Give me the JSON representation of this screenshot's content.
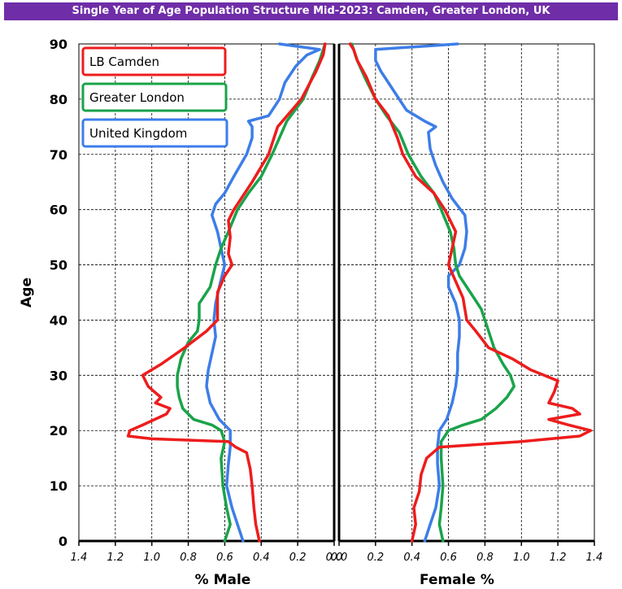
{
  "chart_data": {
    "type": "line",
    "title": "Single Year of Age Population Structure Mid-2023: Camden, Greater London, UK",
    "ylabel": "Age",
    "xlabel_left": "% Male",
    "xlabel_right": "Female %",
    "ylim": [
      0,
      90
    ],
    "xlim_each_side": [
      0,
      1.4
    ],
    "y_ticks": [
      0,
      10,
      20,
      30,
      40,
      50,
      60,
      70,
      80,
      90
    ],
    "y_tick_labels": [
      "0",
      "10",
      "20",
      "30",
      "40",
      "50",
      "60",
      "70",
      "80",
      "90"
    ],
    "x_tick_labels_male": [
      "1.4",
      "1.2",
      "1.0",
      "0.8",
      "0.6",
      "0.4",
      "0.2",
      "0.0"
    ],
    "x_tick_labels_female": [
      "0.0",
      "0.2",
      "0.4",
      "0.6",
      "0.8",
      "1.0",
      "1.2",
      "1.4"
    ],
    "grid": true,
    "legend_position": "top-left",
    "colors": {
      "LB Camden": "#ee1c1c",
      "Greater London": "#1aa34a",
      "United Kingdom": "#3d7de8"
    },
    "series": [
      {
        "name": "LB Camden",
        "male": [
          [
            0,
            0.41
          ],
          [
            3,
            0.43
          ],
          [
            6,
            0.44
          ],
          [
            10,
            0.45
          ],
          [
            13,
            0.46
          ],
          [
            16,
            0.48
          ],
          [
            17,
            0.54
          ],
          [
            18,
            0.58
          ],
          [
            18.5,
            1.0
          ],
          [
            19,
            1.13
          ],
          [
            20,
            1.12
          ],
          [
            21,
            1.05
          ],
          [
            23,
            0.92
          ],
          [
            24,
            0.9
          ],
          [
            25,
            0.98
          ],
          [
            26,
            0.95
          ],
          [
            28,
            1.02
          ],
          [
            30,
            1.05
          ],
          [
            32,
            0.95
          ],
          [
            35,
            0.82
          ],
          [
            38,
            0.7
          ],
          [
            40,
            0.64
          ],
          [
            45,
            0.64
          ],
          [
            48,
            0.6
          ],
          [
            50,
            0.56
          ],
          [
            52,
            0.58
          ],
          [
            55,
            0.57
          ],
          [
            58,
            0.58
          ],
          [
            60,
            0.55
          ],
          [
            65,
            0.45
          ],
          [
            70,
            0.36
          ],
          [
            75,
            0.31
          ],
          [
            80,
            0.18
          ],
          [
            85,
            0.1
          ],
          [
            88,
            0.06
          ],
          [
            90,
            0.05
          ]
        ],
        "female": [
          [
            0,
            0.4
          ],
          [
            3,
            0.42
          ],
          [
            6,
            0.41
          ],
          [
            9,
            0.44
          ],
          [
            12,
            0.45
          ],
          [
            15,
            0.48
          ],
          [
            17,
            0.55
          ],
          [
            18,
            1.0
          ],
          [
            19,
            1.32
          ],
          [
            20,
            1.38
          ],
          [
            21,
            1.26
          ],
          [
            22,
            1.15
          ],
          [
            23,
            1.32
          ],
          [
            24,
            1.28
          ],
          [
            25,
            1.15
          ],
          [
            27,
            1.18
          ],
          [
            29,
            1.2
          ],
          [
            31,
            1.05
          ],
          [
            33,
            0.95
          ],
          [
            35,
            0.82
          ],
          [
            38,
            0.75
          ],
          [
            40,
            0.7
          ],
          [
            44,
            0.68
          ],
          [
            47,
            0.64
          ],
          [
            50,
            0.6
          ],
          [
            53,
            0.62
          ],
          [
            56,
            0.64
          ],
          [
            60,
            0.58
          ],
          [
            63,
            0.52
          ],
          [
            66,
            0.42
          ],
          [
            70,
            0.35
          ],
          [
            73,
            0.32
          ],
          [
            77,
            0.27
          ],
          [
            80,
            0.2
          ],
          [
            84,
            0.15
          ],
          [
            87,
            0.1
          ],
          [
            89,
            0.08
          ],
          [
            90,
            0.06
          ]
        ]
      },
      {
        "name": "Greater London",
        "male": [
          [
            0,
            0.6
          ],
          [
            3,
            0.57
          ],
          [
            6,
            0.59
          ],
          [
            10,
            0.61
          ],
          [
            15,
            0.62
          ],
          [
            18,
            0.6
          ],
          [
            20,
            0.62
          ],
          [
            21,
            0.67
          ],
          [
            22,
            0.77
          ],
          [
            24,
            0.83
          ],
          [
            26,
            0.85
          ],
          [
            28,
            0.86
          ],
          [
            30,
            0.86
          ],
          [
            33,
            0.84
          ],
          [
            36,
            0.8
          ],
          [
            38,
            0.75
          ],
          [
            40,
            0.74
          ],
          [
            43,
            0.74
          ],
          [
            46,
            0.68
          ],
          [
            50,
            0.65
          ],
          [
            53,
            0.62
          ],
          [
            56,
            0.58
          ],
          [
            60,
            0.53
          ],
          [
            63,
            0.47
          ],
          [
            66,
            0.4
          ],
          [
            70,
            0.34
          ],
          [
            73,
            0.3
          ],
          [
            76,
            0.26
          ],
          [
            80,
            0.17
          ],
          [
            84,
            0.12
          ],
          [
            87,
            0.08
          ],
          [
            90,
            0.05
          ]
        ],
        "female": [
          [
            0,
            0.57
          ],
          [
            3,
            0.55
          ],
          [
            6,
            0.56
          ],
          [
            10,
            0.57
          ],
          [
            15,
            0.56
          ],
          [
            18,
            0.56
          ],
          [
            20,
            0.6
          ],
          [
            21,
            0.68
          ],
          [
            22,
            0.78
          ],
          [
            24,
            0.86
          ],
          [
            26,
            0.92
          ],
          [
            28,
            0.96
          ],
          [
            30,
            0.94
          ],
          [
            32,
            0.9
          ],
          [
            35,
            0.85
          ],
          [
            38,
            0.82
          ],
          [
            40,
            0.8
          ],
          [
            42,
            0.78
          ],
          [
            45,
            0.72
          ],
          [
            48,
            0.66
          ],
          [
            50,
            0.64
          ],
          [
            53,
            0.63
          ],
          [
            56,
            0.61
          ],
          [
            60,
            0.56
          ],
          [
            63,
            0.52
          ],
          [
            66,
            0.45
          ],
          [
            70,
            0.38
          ],
          [
            74,
            0.33
          ],
          [
            77,
            0.26
          ],
          [
            80,
            0.2
          ],
          [
            84,
            0.14
          ],
          [
            87,
            0.1
          ],
          [
            89,
            0.08
          ],
          [
            90,
            0.07
          ]
        ]
      },
      {
        "name": "United Kingdom",
        "male": [
          [
            0,
            0.5
          ],
          [
            3,
            0.53
          ],
          [
            6,
            0.56
          ],
          [
            10,
            0.59
          ],
          [
            14,
            0.58
          ],
          [
            17,
            0.57
          ],
          [
            20,
            0.57
          ],
          [
            22,
            0.63
          ],
          [
            25,
            0.68
          ],
          [
            28,
            0.7
          ],
          [
            31,
            0.69
          ],
          [
            34,
            0.67
          ],
          [
            37,
            0.65
          ],
          [
            40,
            0.66
          ],
          [
            43,
            0.65
          ],
          [
            46,
            0.63
          ],
          [
            50,
            0.6
          ],
          [
            53,
            0.62
          ],
          [
            56,
            0.64
          ],
          [
            59,
            0.67
          ],
          [
            61,
            0.65
          ],
          [
            63,
            0.6
          ],
          [
            66,
            0.55
          ],
          [
            70,
            0.48
          ],
          [
            73,
            0.45
          ],
          [
            75,
            0.45
          ],
          [
            76,
            0.47
          ],
          [
            77,
            0.36
          ],
          [
            80,
            0.3
          ],
          [
            83,
            0.27
          ],
          [
            86,
            0.21
          ],
          [
            88,
            0.15
          ],
          [
            89,
            0.08
          ],
          [
            90,
            0.3
          ]
        ],
        "female": [
          [
            0,
            0.47
          ],
          [
            3,
            0.5
          ],
          [
            6,
            0.53
          ],
          [
            10,
            0.55
          ],
          [
            14,
            0.54
          ],
          [
            17,
            0.54
          ],
          [
            20,
            0.55
          ],
          [
            22,
            0.59
          ],
          [
            25,
            0.62
          ],
          [
            28,
            0.64
          ],
          [
            31,
            0.65
          ],
          [
            34,
            0.65
          ],
          [
            37,
            0.66
          ],
          [
            40,
            0.66
          ],
          [
            43,
            0.64
          ],
          [
            46,
            0.6
          ],
          [
            48,
            0.6
          ],
          [
            50,
            0.66
          ],
          [
            53,
            0.69
          ],
          [
            56,
            0.7
          ],
          [
            59,
            0.69
          ],
          [
            62,
            0.62
          ],
          [
            65,
            0.57
          ],
          [
            68,
            0.53
          ],
          [
            71,
            0.5
          ],
          [
            74,
            0.49
          ],
          [
            75,
            0.53
          ],
          [
            76,
            0.47
          ],
          [
            78,
            0.37
          ],
          [
            80,
            0.33
          ],
          [
            83,
            0.27
          ],
          [
            85,
            0.23
          ],
          [
            87,
            0.2
          ],
          [
            89,
            0.2
          ],
          [
            90,
            0.65
          ]
        ]
      }
    ]
  }
}
